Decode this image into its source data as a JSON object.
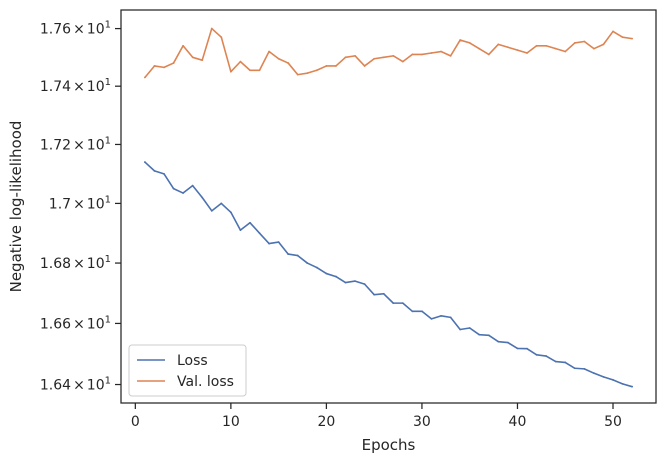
{
  "chart_data": {
    "type": "line",
    "xlabel": "Epochs",
    "ylabel": "Negative log-likelihood",
    "x_ticks": [
      0,
      10,
      20,
      30,
      40,
      50
    ],
    "y_scale": "log",
    "y_ticks": [
      16.4,
      16.6,
      16.8,
      17.0,
      17.2,
      17.4,
      17.6
    ],
    "y_tick_labels": [
      [
        "1.64",
        "×",
        "10",
        "1"
      ],
      [
        "1.66",
        "×",
        "10",
        "1"
      ],
      [
        "1.68",
        "×",
        "10",
        "1"
      ],
      [
        "1.7",
        "×",
        "10",
        "1"
      ],
      [
        "1.72",
        "×",
        "10",
        "1"
      ],
      [
        "1.74",
        "×",
        "10",
        "1"
      ],
      [
        "1.76",
        "×",
        "10",
        "1"
      ]
    ],
    "xlim": [
      -1.5,
      54.5
    ],
    "ylim": [
      16.34,
      17.665
    ],
    "grid": false,
    "legend_position": "lower-left",
    "x": [
      1,
      2,
      3,
      4,
      5,
      6,
      7,
      8,
      9,
      10,
      11,
      12,
      13,
      14,
      15,
      16,
      17,
      18,
      19,
      20,
      21,
      22,
      23,
      24,
      25,
      26,
      27,
      28,
      29,
      30,
      31,
      32,
      33,
      34,
      35,
      36,
      37,
      38,
      39,
      40,
      41,
      42,
      43,
      44,
      45,
      46,
      47,
      48,
      49,
      50,
      51,
      52
    ],
    "series": [
      {
        "name": "Loss",
        "color": "#4c72b0",
        "values": [
          17.14,
          17.11,
          17.1,
          17.05,
          17.035,
          17.06,
          17.02,
          16.975,
          17.0,
          16.97,
          16.91,
          16.935,
          16.9,
          16.865,
          16.87,
          16.83,
          16.825,
          16.8,
          16.785,
          16.765,
          16.755,
          16.735,
          16.74,
          16.73,
          16.695,
          16.698,
          16.667,
          16.667,
          16.64,
          16.64,
          16.615,
          16.625,
          16.62,
          16.58,
          16.585,
          16.563,
          16.561,
          16.54,
          16.537,
          16.518,
          16.517,
          16.497,
          16.493,
          16.475,
          16.472,
          16.453,
          16.451,
          16.437,
          16.425,
          16.415,
          16.402,
          16.393
        ]
      },
      {
        "name": "Val. loss",
        "color": "#dd8452",
        "values": [
          17.43,
          17.47,
          17.465,
          17.48,
          17.54,
          17.5,
          17.49,
          17.6,
          17.57,
          17.45,
          17.485,
          17.455,
          17.455,
          17.52,
          17.495,
          17.48,
          17.44,
          17.445,
          17.455,
          17.47,
          17.47,
          17.5,
          17.505,
          17.47,
          17.495,
          17.5,
          17.505,
          17.485,
          17.51,
          17.51,
          17.515,
          17.52,
          17.505,
          17.56,
          17.55,
          17.53,
          17.51,
          17.545,
          17.535,
          17.525,
          17.515,
          17.54,
          17.54,
          17.53,
          17.52,
          17.55,
          17.555,
          17.53,
          17.545,
          17.59,
          17.57,
          17.565
        ]
      }
    ]
  }
}
